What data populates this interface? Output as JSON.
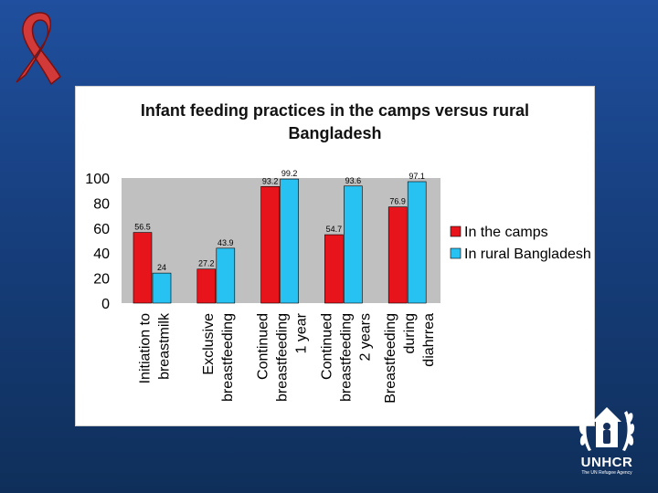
{
  "slide": {
    "logo": {
      "name": "UNHCR",
      "subtitle": "The UN Refugee Agency"
    }
  },
  "colors": {
    "series_camps": "#e8141b",
    "series_rural": "#27c1f2",
    "plot_background": "#c0c0c0",
    "ribbon": "#d23a3a"
  },
  "chart_data": {
    "type": "bar",
    "title_lines": [
      "Infant feeding practices in the camps versus rural",
      "Bangladesh"
    ],
    "categories": [
      [
        "Initiation to",
        "breastmilk"
      ],
      [
        "Exclusive",
        "breastfeeding"
      ],
      [
        "Continued",
        "breastfeeding",
        "1 year"
      ],
      [
        "Continued",
        "breastfeeding",
        "2 years"
      ],
      [
        "Breastfeeding",
        "during",
        "diahrrea"
      ]
    ],
    "series": [
      {
        "name": "In the camps",
        "values": [
          56.5,
          27.2,
          93.2,
          54.7,
          76.9
        ],
        "labels": [
          "56.5",
          "27.2",
          "93.2",
          "54.7",
          "76.9"
        ]
      },
      {
        "name": "In rural Bangladesh",
        "values": [
          24,
          43.9,
          99.2,
          93.6,
          97.1
        ],
        "labels": [
          "24",
          "43.9",
          "99.2",
          "93.6",
          "97.1"
        ]
      }
    ],
    "ylim": [
      0,
      100
    ],
    "yticks": [
      0,
      20,
      40,
      60,
      80,
      100
    ],
    "ytick_labels": [
      "0",
      "20",
      "40",
      "60",
      "80",
      "100"
    ],
    "legend_position": "right",
    "grid": false
  }
}
